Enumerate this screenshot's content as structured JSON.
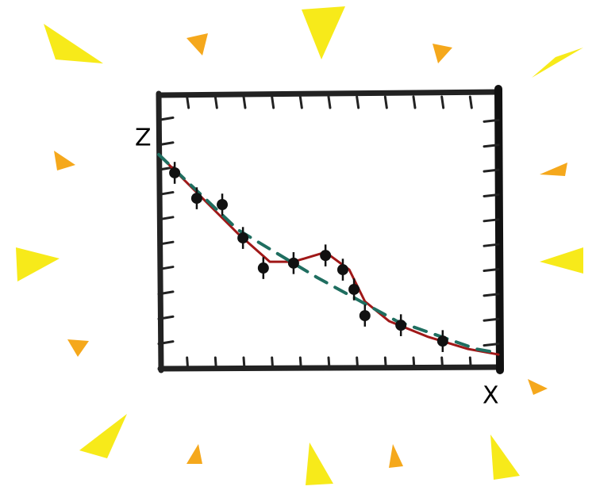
{
  "chart_data": {
    "type": "scatter",
    "x_label": "X",
    "y_label": "Z",
    "xlim": [
      0,
      10
    ],
    "ylim": [
      0,
      10
    ],
    "points": {
      "color": "#111111",
      "x": [
        0.47,
        1.12,
        1.87,
        2.48,
        3.08,
        3.97,
        4.91,
        5.42,
        5.75,
        6.07,
        7.13,
        8.36
      ],
      "values": [
        7.16,
        6.23,
        6.0,
        4.78,
        3.68,
        3.86,
        4.14,
        3.62,
        2.9,
        1.94,
        1.59,
        1.01
      ],
      "errors": [
        0.4,
        0.4,
        0.4,
        0.4,
        0.4,
        0.4,
        0.4,
        0.4,
        0.4,
        0.4,
        0.4,
        0.4
      ]
    },
    "lines": [
      {
        "color": "#a01818",
        "dashed": false,
        "x": [
          0,
          1.17,
          2.34,
          3.27,
          3.97,
          4.91,
          5.61,
          6.07,
          6.78,
          7.94,
          9.11,
          10
        ],
        "values": [
          7.83,
          6.38,
          4.93,
          3.91,
          3.91,
          4.26,
          3.62,
          2.46,
          1.74,
          1.16,
          0.72,
          0.52
        ]
      },
      {
        "color": "#1f6e60",
        "dashed": true,
        "x": [
          0,
          2.34,
          4.67,
          7.01,
          9.35,
          10
        ],
        "values": [
          7.83,
          5.07,
          3.33,
          1.74,
          0.72,
          0.58
        ]
      }
    ]
  }
}
